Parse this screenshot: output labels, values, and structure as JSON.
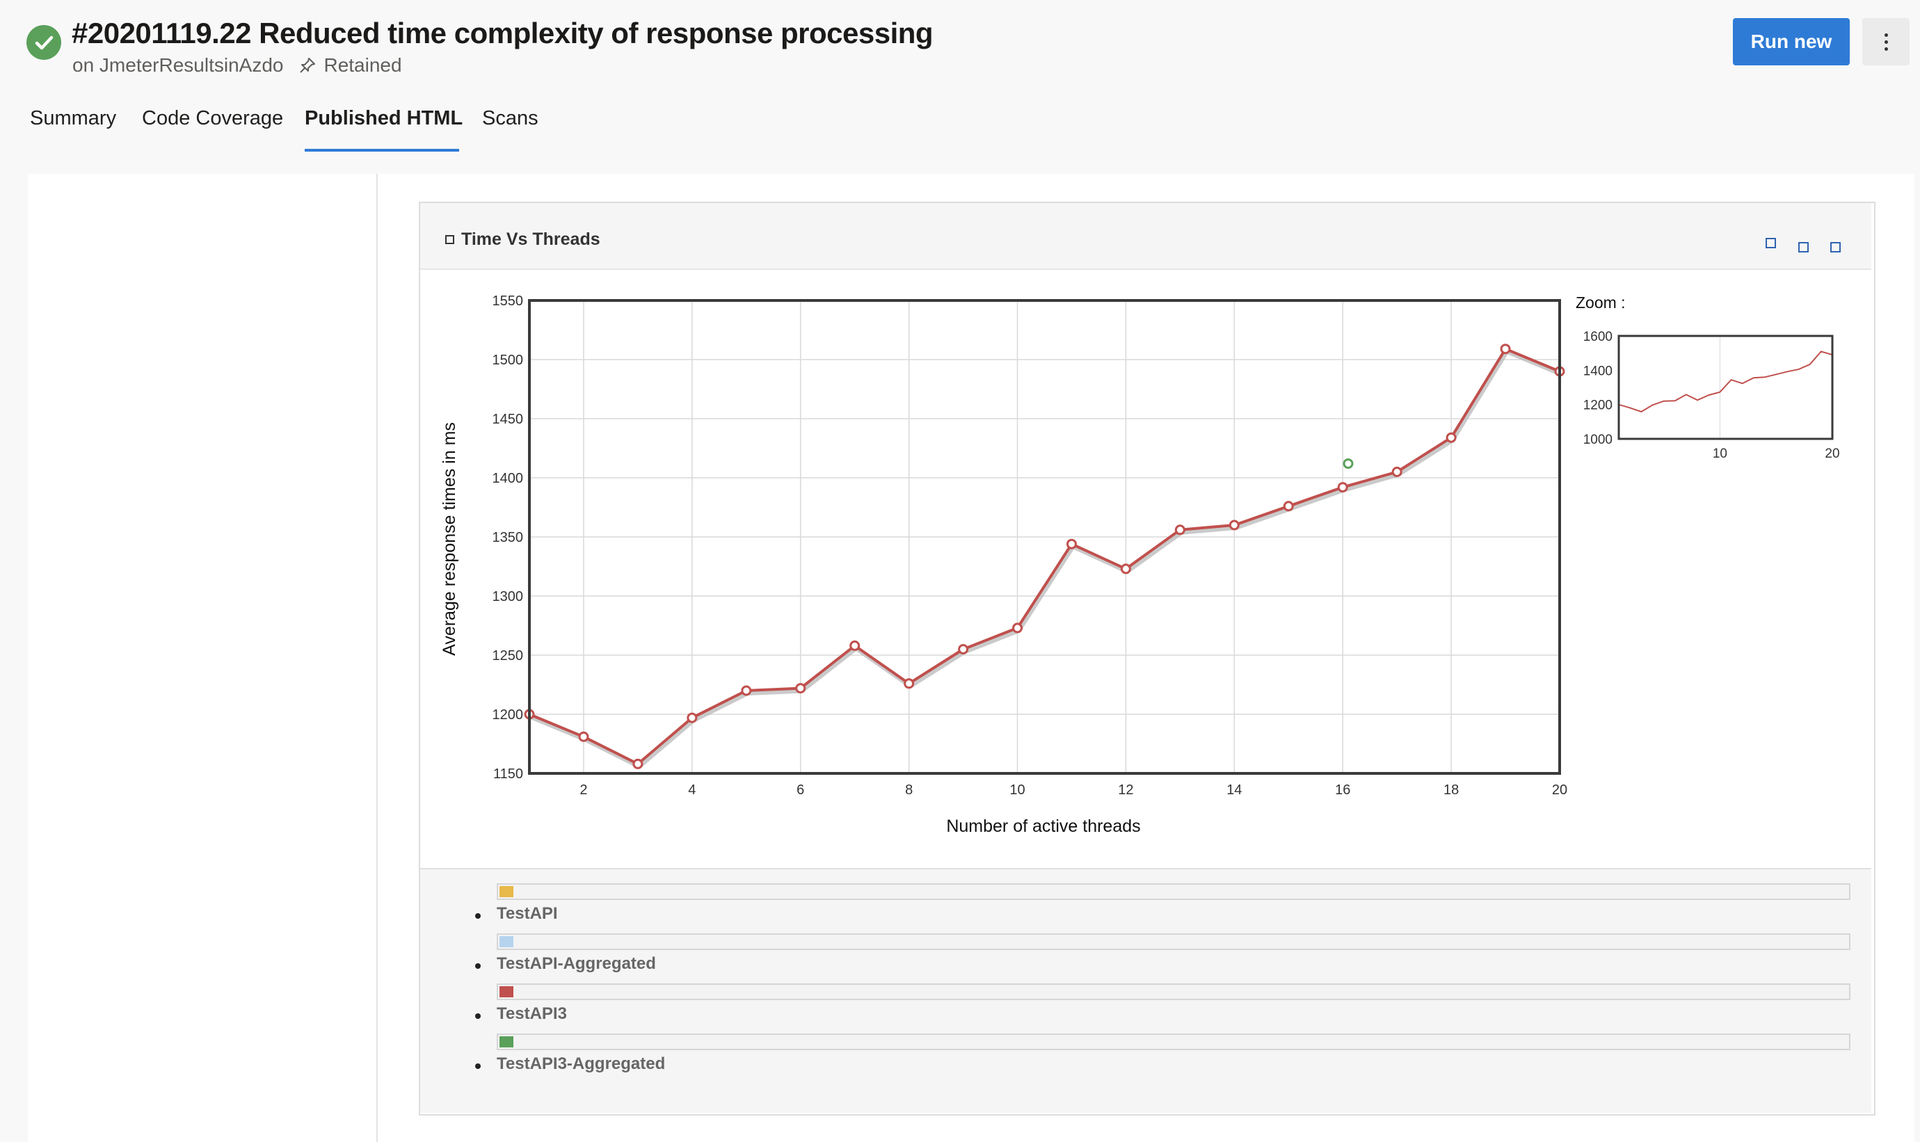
{
  "header": {
    "title": "#20201119.22 Reduced time complexity of response processing",
    "subtitle_repo": "on JmeterResultsinAzdo",
    "subtitle_retained": "Retained",
    "run_new_label": "Run new",
    "status": "succeeded"
  },
  "tabs": [
    {
      "label": "Summary"
    },
    {
      "label": "Code Coverage"
    },
    {
      "label": "Published HTML",
      "active": true
    },
    {
      "label": "Scans"
    }
  ],
  "card": {
    "title": "Time Vs Threads",
    "zoom_label": "Zoom :"
  },
  "colors": {
    "accent": "#2e7bd6",
    "success": "#5aa05a",
    "series_line": "#c0504d"
  },
  "chart_data": {
    "type": "line",
    "title": "Time Vs Threads",
    "xlabel": "Number of active threads",
    "ylabel": "Average response times in ms",
    "xlim": [
      1,
      20
    ],
    "ylim": [
      1150,
      1550
    ],
    "x_ticks": [
      2,
      4,
      6,
      8,
      10,
      12,
      14,
      16,
      18,
      20
    ],
    "y_ticks": [
      1150,
      1200,
      1250,
      1300,
      1350,
      1400,
      1450,
      1500,
      1550
    ],
    "grid": true,
    "legend_position": "bottom",
    "series": [
      {
        "name": "TestAPI",
        "color": "#e8b84a",
        "x": [],
        "y": []
      },
      {
        "name": "TestAPI-Aggregated",
        "color": "#b5d3ef",
        "x": [],
        "y": []
      },
      {
        "name": "TestAPI3",
        "color": "#c0504d",
        "x": [
          1,
          2,
          3,
          4,
          5,
          6,
          7,
          8,
          9,
          10,
          11,
          12,
          13,
          14,
          15,
          16,
          17,
          18,
          19,
          20
        ],
        "y": [
          1200,
          1181,
          1158,
          1197,
          1220,
          1222,
          1258,
          1226,
          1255,
          1273,
          1344,
          1323,
          1356,
          1360,
          1376,
          1392,
          1405,
          1434,
          1509,
          1490
        ]
      },
      {
        "name": "TestAPI3-Aggregated",
        "color": "#5aa05a",
        "x": [
          16.1
        ],
        "y": [
          1412
        ]
      }
    ],
    "zoom": {
      "xlim": [
        1,
        20
      ],
      "ylim": [
        1000,
        1600
      ],
      "x_ticks": [
        10,
        20
      ],
      "y_ticks": [
        1000,
        1200,
        1400,
        1600
      ]
    }
  }
}
